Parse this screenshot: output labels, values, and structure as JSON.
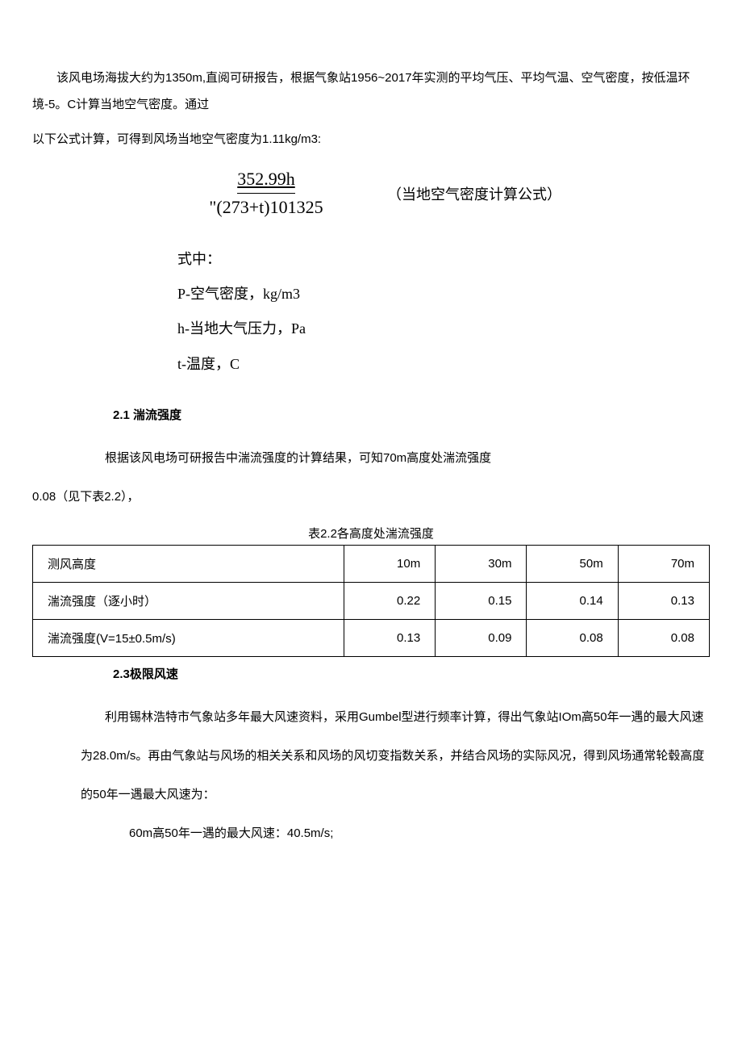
{
  "intro": {
    "p1": "该风电场海拔大约为1350m,直阅可研报告，根据气象站1956~2017年实测的平均气压、平均气温、空气密度，按低温环境-5。C计算当地空气密度。通过",
    "p2": "以下公式计算，可得到风场当地空气密度为1.11kg/m3:"
  },
  "formula": {
    "numerator": "352.99h",
    "denominator": "\"(273+t)101325",
    "note": "（当地空气密度计算公式）"
  },
  "legend": {
    "head": "式中：",
    "l1": "P-空气密度，kg/m3",
    "l2": "h-当地大气压力，Pa",
    "l3": "t-温度，C"
  },
  "sec21": {
    "heading": "2.1   湍流强度",
    "p1": "根据该风电场可研报告中湍流强度的计算结果，可知70m高度处湍流强度",
    "p2": "0.08（见下表2.2），"
  },
  "table22": {
    "caption": "表2.2各高度处湍流强度",
    "rows": [
      {
        "label": "测风高度",
        "c1": "10m",
        "c2": "30m",
        "c3": "50m",
        "c4": "70m"
      },
      {
        "label": "湍流强度（逐小时）",
        "c1": "0.22",
        "c2": "0.15",
        "c3": "0.14",
        "c4": "0.13"
      },
      {
        "label": "湍流强度(V=15±0.5m/s)",
        "c1": "0.13",
        "c2": "0.09",
        "c3": "0.08",
        "c4": "0.08"
      }
    ]
  },
  "sec23": {
    "heading": "2.3极限风速",
    "p1": "利用锡林浩特市气象站多年最大风速资料，采用Gumbel型进行频率计算，得出气象站IOm高50年一遇的最大风速为28.0m/s。再由气象站与风场的相关关系和风场的风切变指数关系，并结合风场的实际风况，得到风场通常轮毂高度的50年一遇最大风速为：",
    "p2": "60m高50年一遇的最大风速：40.5m/s;"
  },
  "colors": {
    "text": "#000000",
    "bg": "#ffffff",
    "border": "#000000"
  }
}
